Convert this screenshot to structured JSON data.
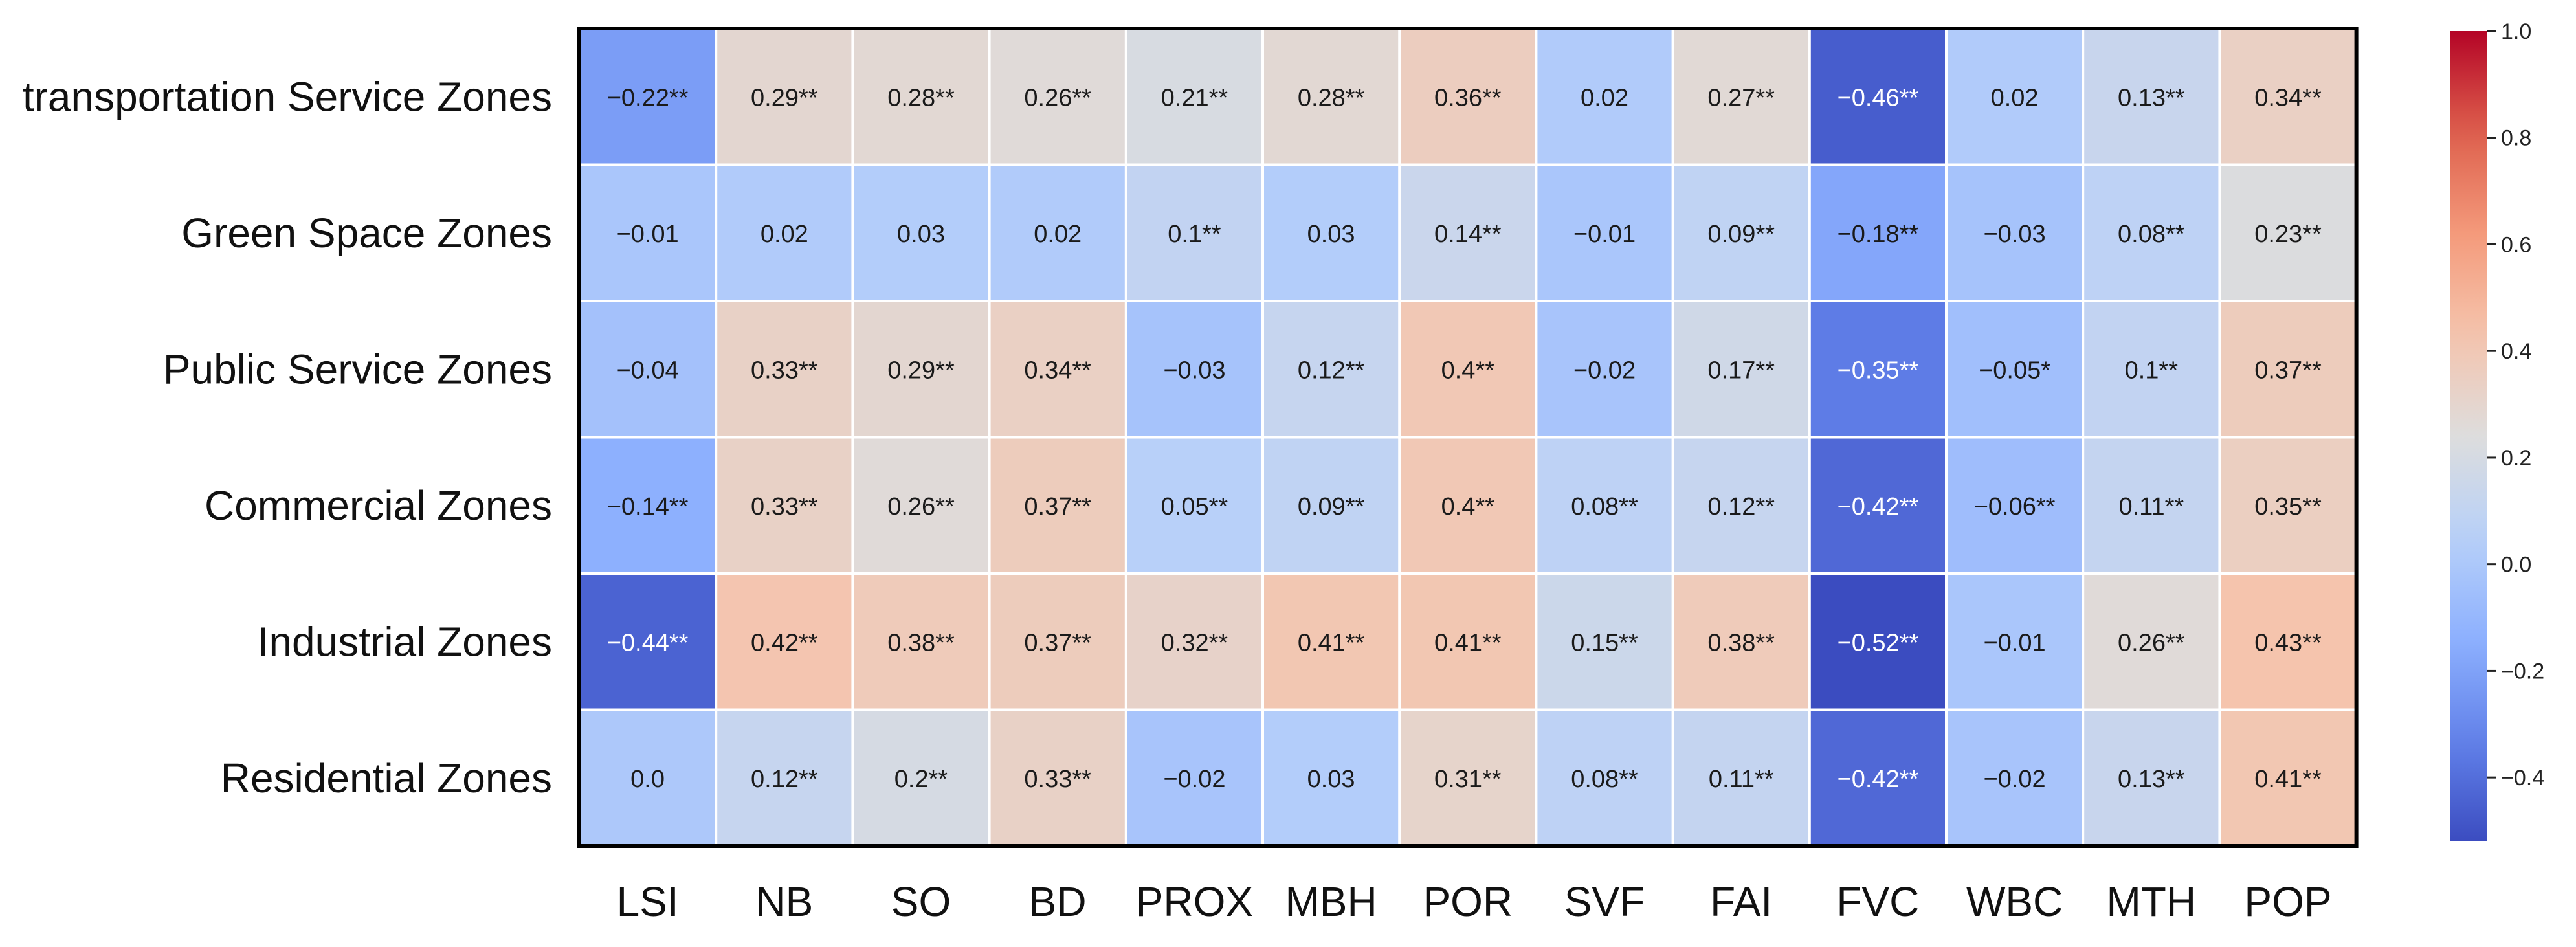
{
  "chart_data": {
    "type": "heatmap",
    "rows": [
      "transportation Service Zones",
      "Green Space Zones",
      "Public Service Zones",
      "Commercial Zones",
      "Industrial Zones",
      "Residential Zones"
    ],
    "columns": [
      "LSI",
      "NB",
      "SO",
      "BD",
      "PROX",
      "MBH",
      "POR",
      "SVF",
      "FAI",
      "FVC",
      "WBC",
      "MTH",
      "POP"
    ],
    "values": [
      [
        -0.22,
        0.29,
        0.28,
        0.26,
        0.21,
        0.28,
        0.36,
        0.02,
        0.27,
        -0.46,
        0.02,
        0.13,
        0.34
      ],
      [
        -0.01,
        0.02,
        0.03,
        0.02,
        0.1,
        0.03,
        0.14,
        -0.01,
        0.09,
        -0.18,
        -0.03,
        0.08,
        0.23
      ],
      [
        -0.04,
        0.33,
        0.29,
        0.34,
        -0.03,
        0.12,
        0.4,
        -0.02,
        0.17,
        -0.35,
        -0.05,
        0.1,
        0.37
      ],
      [
        -0.14,
        0.33,
        0.26,
        0.37,
        0.05,
        0.09,
        0.4,
        0.08,
        0.12,
        -0.42,
        -0.06,
        0.11,
        0.35
      ],
      [
        -0.44,
        0.42,
        0.38,
        0.37,
        0.32,
        0.41,
        0.41,
        0.15,
        0.38,
        -0.52,
        -0.01,
        0.26,
        0.43
      ],
      [
        0.0,
        0.12,
        0.2,
        0.33,
        -0.02,
        0.03,
        0.31,
        0.08,
        0.11,
        -0.42,
        -0.02,
        0.13,
        0.41
      ]
    ],
    "cell_labels": [
      [
        "−0.22**",
        "0.29**",
        "0.28**",
        "0.26**",
        "0.21**",
        "0.28**",
        "0.36**",
        "0.02",
        "0.27**",
        "−0.46**",
        "0.02",
        "0.13**",
        "0.34**"
      ],
      [
        "−0.01",
        "0.02",
        "0.03",
        "0.02",
        "0.1**",
        "0.03",
        "0.14**",
        "−0.01",
        "0.09**",
        "−0.18**",
        "−0.03",
        "0.08**",
        "0.23**"
      ],
      [
        "−0.04",
        "0.33**",
        "0.29**",
        "0.34**",
        "−0.03",
        "0.12**",
        "0.4**",
        "−0.02",
        "0.17**",
        "−0.35**",
        "−0.05*",
        "0.1**",
        "0.37**"
      ],
      [
        "−0.14**",
        "0.33**",
        "0.26**",
        "0.37**",
        "0.05**",
        "0.09**",
        "0.4**",
        "0.08**",
        "0.12**",
        "−0.42**",
        "−0.06**",
        "0.11**",
        "0.35**"
      ],
      [
        "−0.44**",
        "0.42**",
        "0.38**",
        "0.37**",
        "0.32**",
        "0.41**",
        "0.41**",
        "0.15**",
        "0.38**",
        "−0.52**",
        "−0.01",
        "0.26**",
        "0.43**"
      ],
      [
        "0.0",
        "0.12**",
        "0.2**",
        "0.33**",
        "−0.02",
        "0.03",
        "0.31**",
        "0.08**",
        "0.11**",
        "−0.42**",
        "−0.02",
        "0.13**",
        "0.41**"
      ]
    ],
    "colormap": "coolwarm",
    "vmin": -0.52,
    "vmax": 1.0,
    "colorbar": {
      "ticks": [
        1.0,
        0.8,
        0.6,
        0.4,
        0.2,
        0.0,
        -0.2,
        -0.4
      ],
      "tick_labels": [
        "1.0",
        "0.8",
        "0.6",
        "0.4",
        "0.2",
        "0.0",
        "−0.2",
        "−0.4"
      ],
      "placement": "right"
    },
    "grid": false
  }
}
